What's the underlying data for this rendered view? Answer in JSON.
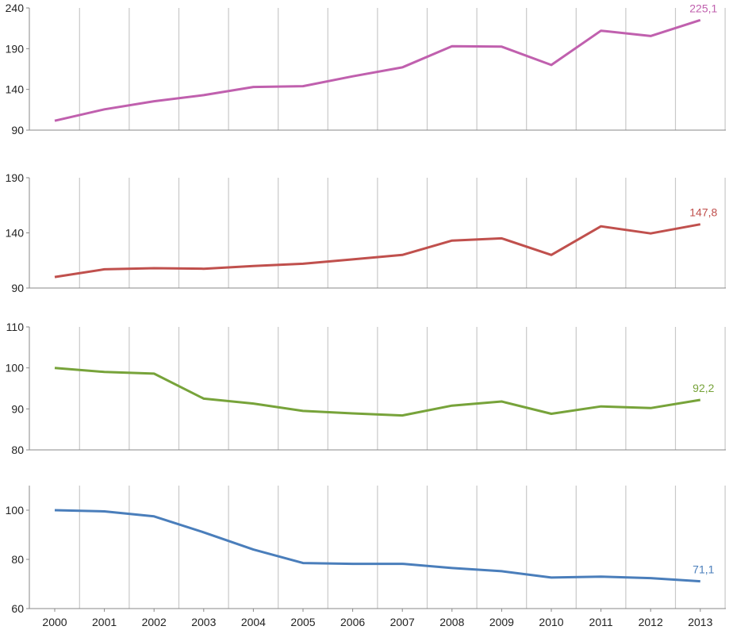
{
  "chart_data": [
    {
      "type": "line",
      "x": [
        "2000",
        "2001",
        "2002",
        "2003",
        "2004",
        "2005",
        "2006",
        "2007",
        "2008",
        "2009",
        "2010",
        "2011",
        "2012",
        "2013"
      ],
      "yticks": [
        "90",
        "140",
        "190",
        "240"
      ],
      "ylim": [
        90,
        240
      ],
      "color": "#c060ae",
      "end_label": "225,1",
      "values": [
        101.5,
        115.5,
        125.5,
        133,
        143,
        144,
        156,
        167,
        193,
        192.5,
        170,
        212,
        205.5,
        225.1
      ]
    },
    {
      "type": "line",
      "x": [
        "2000",
        "2001",
        "2002",
        "2003",
        "2004",
        "2005",
        "2006",
        "2007",
        "2008",
        "2009",
        "2010",
        "2011",
        "2012",
        "2013"
      ],
      "yticks": [
        "90",
        "140",
        "190"
      ],
      "ylim": [
        90,
        190
      ],
      "color": "#c0504d",
      "end_label": "147,8",
      "values": [
        100,
        107,
        108,
        107.5,
        110,
        112,
        116,
        120,
        133,
        135,
        120,
        146,
        139.5,
        147.8
      ]
    },
    {
      "type": "line",
      "x": [
        "2000",
        "2001",
        "2002",
        "2003",
        "2004",
        "2005",
        "2006",
        "2007",
        "2008",
        "2009",
        "2010",
        "2011",
        "2012",
        "2013"
      ],
      "yticks": [
        "80",
        "90",
        "100",
        "110"
      ],
      "ylim": [
        80,
        110
      ],
      "color": "#77a33a",
      "end_label": "92,2",
      "values": [
        100,
        99,
        98.6,
        92.5,
        91.3,
        89.5,
        88.9,
        88.4,
        90.8,
        91.8,
        88.8,
        90.6,
        90.2,
        92.2
      ]
    },
    {
      "type": "line",
      "x": [
        "2000",
        "2001",
        "2002",
        "2003",
        "2004",
        "2005",
        "2006",
        "2007",
        "2008",
        "2009",
        "2010",
        "2011",
        "2012",
        "2013"
      ],
      "yticks": [
        "60",
        "80",
        "100"
      ],
      "ylim": [
        60,
        110
      ],
      "color": "#4a7ebb",
      "end_label": "71,1",
      "values": [
        100,
        99.5,
        97.5,
        91,
        84,
        78.5,
        78.2,
        78.2,
        76.5,
        75.2,
        72.6,
        73,
        72.4,
        71.1
      ]
    }
  ]
}
